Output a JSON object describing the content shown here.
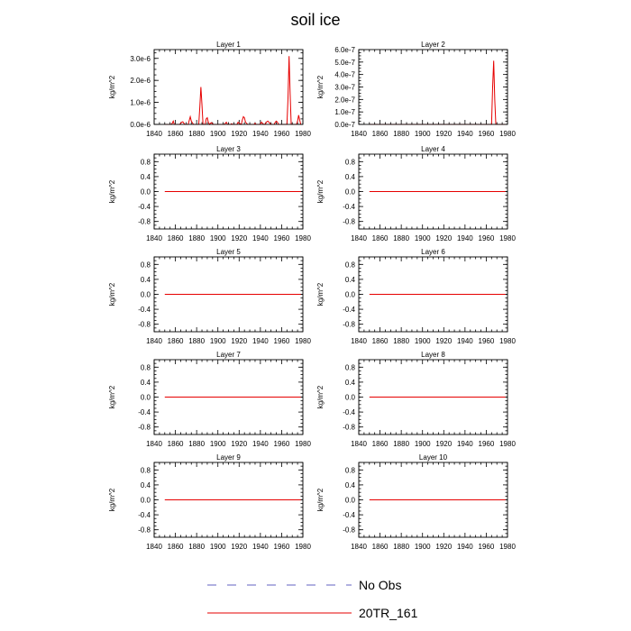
{
  "figure": {
    "title": "soil ice"
  },
  "legend": {
    "entries": [
      {
        "label": "No Obs",
        "color": "#6060c0",
        "style": "dashed"
      },
      {
        "label": "20TR_161",
        "color": "#e60000",
        "style": "solid"
      }
    ]
  },
  "chart_data": [
    {
      "type": "line",
      "title": "Layer 1",
      "ylabel": "kg/m^2",
      "xlim": [
        1840,
        1980
      ],
      "ylim": [
        0,
        3.4e-06
      ],
      "xticks": [
        1840,
        1860,
        1880,
        1900,
        1920,
        1940,
        1960,
        1980
      ],
      "xtick_labels": [
        "1840",
        "1860",
        "1880",
        "1900",
        "1920",
        "1940",
        "1960",
        "1980"
      ],
      "yticks": [
        0,
        1e-06,
        2e-06,
        3e-06
      ],
      "ytick_labels": [
        "0.0e-6",
        "1.0e-6",
        "2.0e-6",
        "3.0e-6"
      ],
      "series": [
        {
          "name": "20TR_161",
          "color": "#e60000",
          "x": [
            1850,
            1856,
            1857,
            1858,
            1859,
            1864,
            1866,
            1867,
            1868,
            1869,
            1872,
            1874,
            1875,
            1877,
            1879,
            1882,
            1883,
            1884,
            1885,
            1886,
            1888,
            1889,
            1890,
            1891,
            1892,
            1893,
            1894,
            1895,
            1896,
            1897,
            1906,
            1907,
            1908,
            1909,
            1912,
            1913,
            1914,
            1918,
            1919,
            1920,
            1922,
            1923,
            1924,
            1925,
            1926,
            1928,
            1934,
            1935,
            1936,
            1939,
            1940,
            1941,
            1942,
            1943,
            1944,
            1945,
            1946,
            1947,
            1948,
            1949,
            1950,
            1951,
            1952,
            1953,
            1954,
            1955,
            1956,
            1957,
            1958,
            1959,
            1960,
            1961,
            1962,
            1963,
            1964,
            1965,
            1966,
            1967,
            1968,
            1969,
            1970,
            1971,
            1972,
            1974,
            1975,
            1976,
            1977,
            1978
          ],
          "y": [
            0,
            0,
            5e-08,
            1.5e-07,
            0,
            0,
            1e-07,
            1.2e-07,
            5e-08,
            0,
            0,
            3.5e-07,
            1.5e-07,
            0,
            0,
            0,
            8e-07,
            1.7e-06,
            9e-07,
            0,
            0,
            2.5e-07,
            3e-07,
            1e-07,
            0,
            5e-08,
            8e-08,
            2e-08,
            0,
            0,
            0,
            5e-08,
            1e-07,
            0,
            0,
            3e-08,
            0,
            0,
            1e-07,
            5e-08,
            0,
            2e-07,
            3.5e-07,
            3e-07,
            1e-07,
            0,
            0,
            5e-08,
            0,
            0,
            2e-08,
            1e-07,
            5e-08,
            0,
            0,
            5e-08,
            1.2e-07,
            1.5e-07,
            1e-07,
            5e-08,
            0,
            0,
            0,
            0,
            1e-07,
            1.5e-07,
            1e-07,
            0,
            0,
            0,
            0,
            0,
            0,
            0,
            0,
            0,
            1.2e-06,
            3.1e-06,
            1.4e-06,
            0,
            0,
            0,
            0,
            0,
            1.5e-07,
            4.2e-07,
            2e-07,
            0
          ]
        }
      ]
    },
    {
      "type": "line",
      "title": "Layer 2",
      "ylabel": "kg/m^2",
      "xlim": [
        1840,
        1980
      ],
      "ylim": [
        0,
        6e-07
      ],
      "xticks": [
        1840,
        1860,
        1880,
        1900,
        1920,
        1940,
        1960,
        1980
      ],
      "xtick_labels": [
        "1840",
        "1860",
        "1880",
        "1900",
        "1920",
        "1940",
        "1960",
        "1980"
      ],
      "yticks": [
        0,
        1e-07,
        2e-07,
        3e-07,
        4e-07,
        5e-07,
        6e-07
      ],
      "ytick_labels": [
        "0.0e-7",
        "1.0e-7",
        "2.0e-7",
        "3.0e-7",
        "4.0e-7",
        "5.0e-7",
        "6.0e-7"
      ],
      "series": [
        {
          "name": "20TR_161",
          "color": "#e60000",
          "x": [
            1850,
            1964,
            1965,
            1966,
            1967,
            1968,
            1969,
            1978
          ],
          "y": [
            0,
            0,
            0,
            3e-07,
            5.1e-07,
            2e-07,
            0,
            0
          ]
        }
      ]
    },
    {
      "type": "line",
      "title": "Layer 3",
      "ylabel": "kg/m^2",
      "xlim": [
        1840,
        1980
      ],
      "ylim": [
        -1,
        1
      ],
      "xticks": [
        1840,
        1860,
        1880,
        1900,
        1920,
        1940,
        1960,
        1980
      ],
      "xtick_labels": [
        "1840",
        "1860",
        "1880",
        "1900",
        "1920",
        "1940",
        "1960",
        "1980"
      ],
      "yticks": [
        -0.8,
        -0.4,
        0,
        0.4,
        0.8
      ],
      "ytick_labels": [
        "-0.8",
        "-0.4",
        "0.0",
        "0.4",
        "0.8"
      ],
      "series": [
        {
          "name": "20TR_161",
          "color": "#e60000",
          "x": [
            1850,
            1978
          ],
          "y": [
            0,
            0
          ]
        }
      ]
    },
    {
      "type": "line",
      "title": "Layer 4",
      "ylabel": "kg/m^2",
      "xlim": [
        1840,
        1980
      ],
      "ylim": [
        -1,
        1
      ],
      "xticks": [
        1840,
        1860,
        1880,
        1900,
        1920,
        1940,
        1960,
        1980
      ],
      "xtick_labels": [
        "1840",
        "1860",
        "1880",
        "1900",
        "1920",
        "1940",
        "1960",
        "1980"
      ],
      "yticks": [
        -0.8,
        -0.4,
        0,
        0.4,
        0.8
      ],
      "ytick_labels": [
        "-0.8",
        "-0.4",
        "0.0",
        "0.4",
        "0.8"
      ],
      "series": [
        {
          "name": "20TR_161",
          "color": "#e60000",
          "x": [
            1850,
            1978
          ],
          "y": [
            0,
            0
          ]
        }
      ]
    },
    {
      "type": "line",
      "title": "Layer 5",
      "ylabel": "kg/m^2",
      "xlim": [
        1840,
        1980
      ],
      "ylim": [
        -1,
        1
      ],
      "xticks": [
        1840,
        1860,
        1880,
        1900,
        1920,
        1940,
        1960,
        1980
      ],
      "xtick_labels": [
        "1840",
        "1860",
        "1880",
        "1900",
        "1920",
        "1940",
        "1960",
        "1980"
      ],
      "yticks": [
        -0.8,
        -0.4,
        0,
        0.4,
        0.8
      ],
      "ytick_labels": [
        "-0.8",
        "-0.4",
        "0.0",
        "0.4",
        "0.8"
      ],
      "series": [
        {
          "name": "20TR_161",
          "color": "#e60000",
          "x": [
            1850,
            1978
          ],
          "y": [
            0,
            0
          ]
        }
      ]
    },
    {
      "type": "line",
      "title": "Layer 6",
      "ylabel": "kg/m^2",
      "xlim": [
        1840,
        1980
      ],
      "ylim": [
        -1,
        1
      ],
      "xticks": [
        1840,
        1860,
        1880,
        1900,
        1920,
        1940,
        1960,
        1980
      ],
      "xtick_labels": [
        "1840",
        "1860",
        "1880",
        "1900",
        "1920",
        "1940",
        "1960",
        "1980"
      ],
      "yticks": [
        -0.8,
        -0.4,
        0,
        0.4,
        0.8
      ],
      "ytick_labels": [
        "-0.8",
        "-0.4",
        "0.0",
        "0.4",
        "0.8"
      ],
      "series": [
        {
          "name": "20TR_161",
          "color": "#e60000",
          "x": [
            1850,
            1978
          ],
          "y": [
            0,
            0
          ]
        }
      ]
    },
    {
      "type": "line",
      "title": "Layer 7",
      "ylabel": "kg/m^2",
      "xlim": [
        1840,
        1980
      ],
      "ylim": [
        -1,
        1
      ],
      "xticks": [
        1840,
        1860,
        1880,
        1900,
        1920,
        1940,
        1960,
        1980
      ],
      "xtick_labels": [
        "1840",
        "1860",
        "1880",
        "1900",
        "1920",
        "1940",
        "1960",
        "1980"
      ],
      "yticks": [
        -0.8,
        -0.4,
        0,
        0.4,
        0.8
      ],
      "ytick_labels": [
        "-0.8",
        "-0.4",
        "0.0",
        "0.4",
        "0.8"
      ],
      "series": [
        {
          "name": "20TR_161",
          "color": "#e60000",
          "x": [
            1850,
            1978
          ],
          "y": [
            0,
            0
          ]
        }
      ]
    },
    {
      "type": "line",
      "title": "Layer 8",
      "ylabel": "kg/m^2",
      "xlim": [
        1840,
        1980
      ],
      "ylim": [
        -1,
        1
      ],
      "xticks": [
        1840,
        1860,
        1880,
        1900,
        1920,
        1940,
        1960,
        1980
      ],
      "xtick_labels": [
        "1840",
        "1860",
        "1880",
        "1900",
        "1920",
        "1940",
        "1960",
        "1980"
      ],
      "yticks": [
        -0.8,
        -0.4,
        0,
        0.4,
        0.8
      ],
      "ytick_labels": [
        "-0.8",
        "-0.4",
        "0.0",
        "0.4",
        "0.8"
      ],
      "series": [
        {
          "name": "20TR_161",
          "color": "#e60000",
          "x": [
            1850,
            1978
          ],
          "y": [
            0,
            0
          ]
        }
      ]
    },
    {
      "type": "line",
      "title": "Layer 9",
      "ylabel": "kg/m^2",
      "xlim": [
        1840,
        1980
      ],
      "ylim": [
        -1,
        1
      ],
      "xticks": [
        1840,
        1860,
        1880,
        1900,
        1920,
        1940,
        1960,
        1980
      ],
      "xtick_labels": [
        "1840",
        "1860",
        "1880",
        "1900",
        "1920",
        "1940",
        "1960",
        "1980"
      ],
      "yticks": [
        -0.8,
        -0.4,
        0,
        0.4,
        0.8
      ],
      "ytick_labels": [
        "-0.8",
        "-0.4",
        "0.0",
        "0.4",
        "0.8"
      ],
      "series": [
        {
          "name": "20TR_161",
          "color": "#e60000",
          "x": [
            1850,
            1978
          ],
          "y": [
            0,
            0
          ]
        }
      ]
    },
    {
      "type": "line",
      "title": "Layer 10",
      "ylabel": "kg/m^2",
      "xlim": [
        1840,
        1980
      ],
      "ylim": [
        -1,
        1
      ],
      "xticks": [
        1840,
        1860,
        1880,
        1900,
        1920,
        1940,
        1960,
        1980
      ],
      "xtick_labels": [
        "1840",
        "1860",
        "1880",
        "1900",
        "1920",
        "1940",
        "1960",
        "1980"
      ],
      "yticks": [
        -0.8,
        -0.4,
        0,
        0.4,
        0.8
      ],
      "ytick_labels": [
        "-0.8",
        "-0.4",
        "0.0",
        "0.4",
        "0.8"
      ],
      "series": [
        {
          "name": "20TR_161",
          "color": "#e60000",
          "x": [
            1850,
            1978
          ],
          "y": [
            0,
            0
          ]
        }
      ]
    }
  ]
}
